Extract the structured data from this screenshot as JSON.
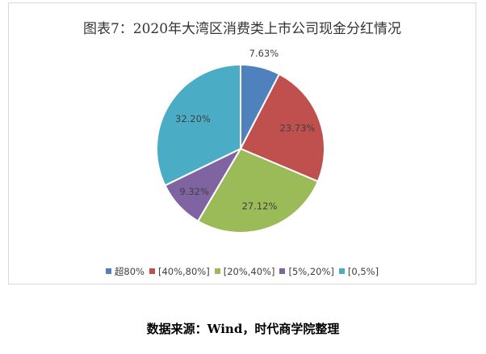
{
  "chart_data": {
    "type": "pie",
    "title": "图表7：2020年大湾区消费类上市公司现金分红情况",
    "categories": [
      "超80%",
      "[40%,80%]",
      "[20%,40%]",
      "[5%,20%]",
      "[0,5%]"
    ],
    "values": [
      7.63,
      23.73,
      27.12,
      9.32,
      32.2
    ],
    "data_labels": [
      "7.63%",
      "23.73%",
      "27.12%",
      "9.32%",
      "32.20%"
    ],
    "colors": [
      "#4f81bd",
      "#c0504d",
      "#9bbb59",
      "#8064a2",
      "#4bacc6"
    ],
    "legend_position": "bottom",
    "start_angle": "12 o'clock",
    "direction": "clockwise"
  },
  "source": "数据来源：Wind，时代商学院整理"
}
